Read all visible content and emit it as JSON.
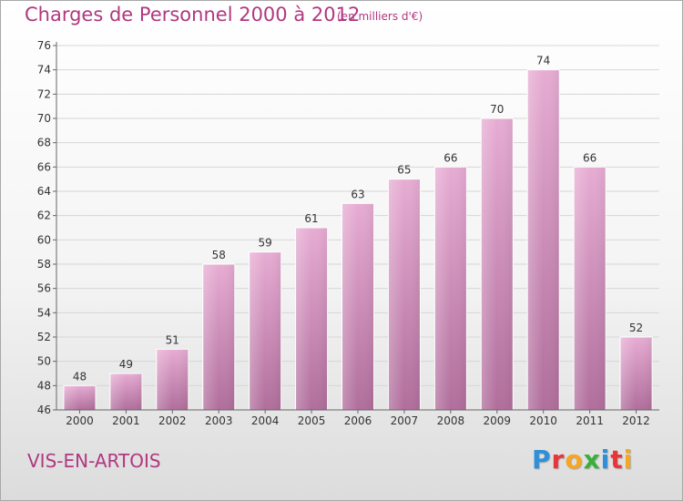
{
  "header": {
    "title": "Charges de Personnel 2000 à 2012",
    "subtitle": "(en milliers d'€)"
  },
  "footer": {
    "place": "VIS-EN-ARTOIS",
    "logo_text": "Proxiti",
    "logo_letters": [
      {
        "ch": "P",
        "color": "#2f8fd8"
      },
      {
        "ch": "r",
        "color": "#e8353a"
      },
      {
        "ch": "o",
        "color": "#f5a623"
      },
      {
        "ch": "x",
        "color": "#3cae3c"
      },
      {
        "ch": "i",
        "color": "#2f8fd8"
      },
      {
        "ch": "t",
        "color": "#e8353a"
      },
      {
        "ch": "i",
        "color": "#f5a623"
      }
    ]
  },
  "colors": {
    "bar_top": "#e7acd3",
    "bar_bottom": "#b06e9c",
    "accent": "#b03880",
    "grid": "#d6d6d6"
  },
  "chart_data": {
    "type": "bar",
    "categories": [
      "2000",
      "2001",
      "2002",
      "2003",
      "2004",
      "2005",
      "2006",
      "2007",
      "2008",
      "2009",
      "2010",
      "2011",
      "2012"
    ],
    "values": [
      48,
      49,
      51,
      58,
      59,
      61,
      63,
      65,
      66,
      70,
      74,
      66,
      52
    ],
    "ylim": [
      46,
      76
    ],
    "yticks": [
      46,
      48,
      50,
      52,
      54,
      56,
      58,
      60,
      62,
      64,
      66,
      68,
      70,
      72,
      74,
      76
    ],
    "grid": true,
    "title": "Charges de Personnel 2000 à 2012",
    "xlabel": "",
    "ylabel": ""
  }
}
